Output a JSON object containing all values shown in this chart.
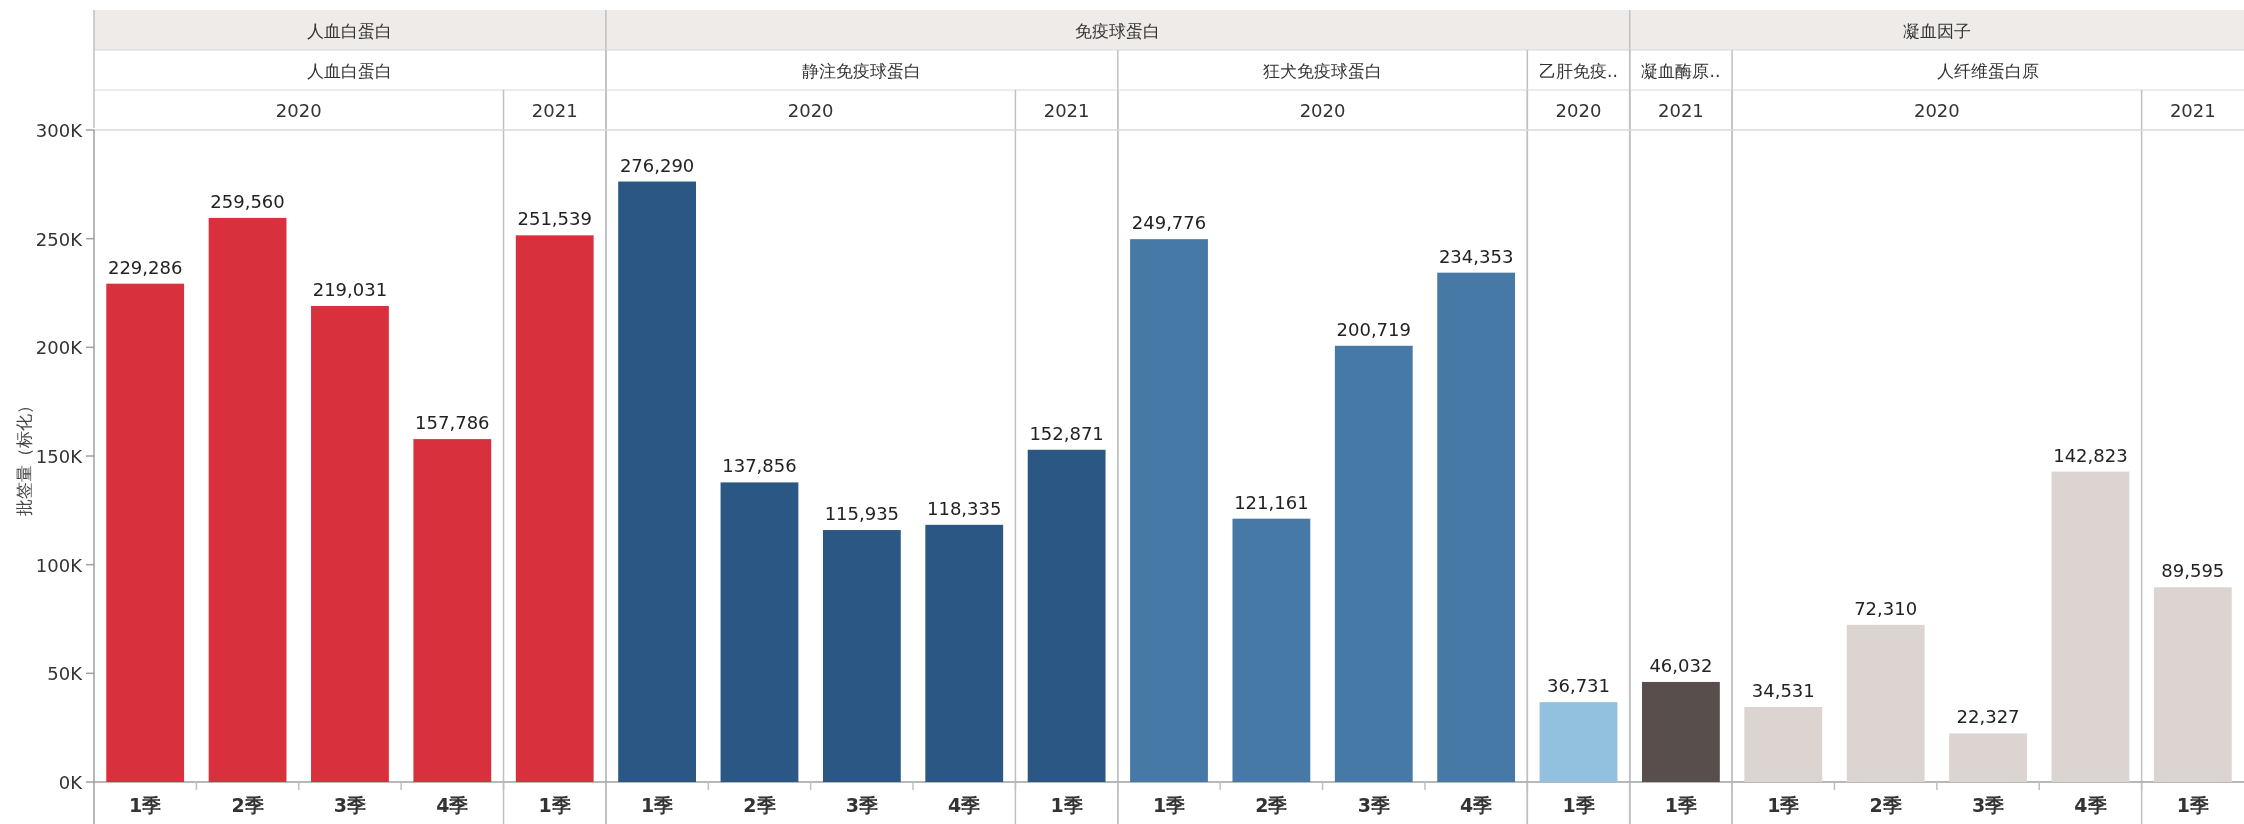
{
  "chart_data": {
    "type": "bar",
    "ylabel": "批签量（标化）",
    "categories": [
      "1季",
      "2季",
      "3季",
      "4季",
      "1季",
      "1季",
      "2季",
      "3季",
      "4季",
      "1季",
      "1季",
      "2季",
      "3季",
      "4季",
      "1季",
      "1季",
      "1季",
      "2季",
      "3季",
      "4季",
      "1季"
    ],
    "values": [
      229286,
      259560,
      219031,
      157786,
      251539,
      276290,
      137856,
      115935,
      118335,
      152871,
      249776,
      121161,
      200719,
      234353,
      36731,
      46032,
      34531,
      72310,
      22327,
      142823,
      89595
    ],
    "colors": [
      "#d9303e",
      "#d9303e",
      "#d9303e",
      "#d9303e",
      "#d9303e",
      "#2a5783",
      "#2a5783",
      "#2a5783",
      "#2a5783",
      "#2a5783",
      "#4779a7",
      "#4779a7",
      "#4779a7",
      "#4779a7",
      "#92c0df",
      "#584e4b",
      "#dcd4d0",
      "#dcd4d0",
      "#dcd4d0",
      "#dcd4d0",
      "#dcd4d0"
    ],
    "ylim": [
      0,
      300000
    ],
    "yticks": [
      {
        "value": 0,
        "label": "0K"
      },
      {
        "value": 50000,
        "label": "50K"
      },
      {
        "value": 100000,
        "label": "100K"
      },
      {
        "value": 150000,
        "label": "150K"
      },
      {
        "value": 200000,
        "label": "200K"
      },
      {
        "value": 250000,
        "label": "250K"
      },
      {
        "value": 300000,
        "label": "300K"
      }
    ],
    "value_labels": [
      "229,286",
      "259,560",
      "219,031",
      "157,786",
      "251,539",
      "276,290",
      "137,856",
      "115,935",
      "118,335",
      "152,871",
      "249,776",
      "121,161",
      "200,719",
      "234,353",
      "36,731",
      "46,032",
      "34,531",
      "72,310",
      "22,327",
      "142,823",
      "89,595"
    ],
    "annotations": [
      "人血白蛋白",
      "免疫球蛋白",
      "凝血因子",
      "人血白蛋白",
      "静注免疫球蛋白",
      "狂犬免疫球蛋白",
      "乙肝免疫..",
      "凝血酶原..",
      "人纤维蛋白原",
      "2020",
      "2021",
      "2020",
      "2021",
      "2020",
      "2020",
      "2021",
      "2020",
      "2021"
    ]
  }
}
